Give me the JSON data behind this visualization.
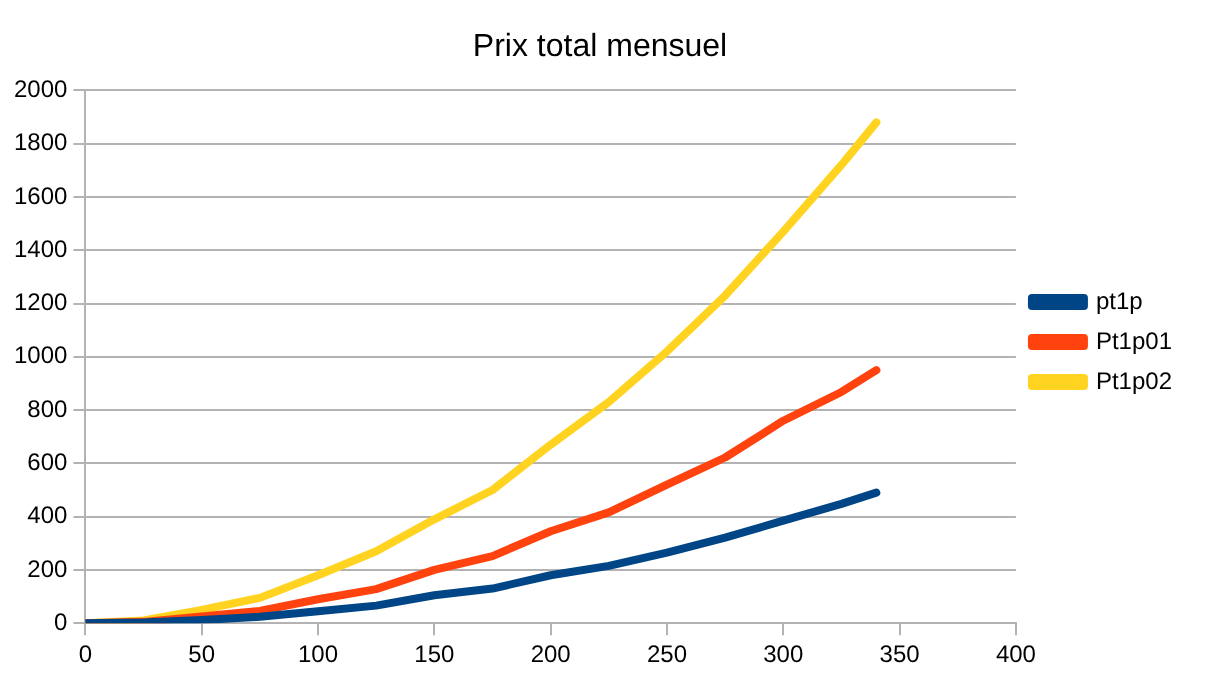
{
  "chart_data": {
    "type": "line",
    "title": "Prix total mensuel",
    "x": [
      0,
      25,
      50,
      75,
      100,
      125,
      150,
      175,
      200,
      225,
      250,
      275,
      300,
      325,
      340
    ],
    "series": [
      {
        "name": "pt1p",
        "color": "#004586",
        "values": [
          0,
          3,
          12,
          24,
          45,
          66,
          105,
          130,
          180,
          215,
          265,
          321,
          385,
          448,
          490
        ]
      },
      {
        "name": "Pt1p01",
        "color": "#ff420e",
        "values": [
          0,
          5,
          25,
          46,
          90,
          128,
          200,
          252,
          345,
          416,
          520,
          622,
          760,
          868,
          950
        ]
      },
      {
        "name": "Pt1p02",
        "color": "#ffd320",
        "values": [
          0,
          10,
          50,
          95,
          180,
          270,
          390,
          500,
          670,
          830,
          1020,
          1230,
          1470,
          1720,
          1880
        ]
      }
    ],
    "xlim": [
      0,
      400
    ],
    "xticks": [
      0,
      50,
      100,
      150,
      200,
      250,
      300,
      350,
      400
    ],
    "ylim": [
      0,
      2000
    ],
    "yticks": [
      0,
      200,
      400,
      600,
      800,
      1000,
      1200,
      1400,
      1600,
      1800,
      2000
    ],
    "grid": "y",
    "legend": "right",
    "marker": "none",
    "line_style": "solid"
  }
}
